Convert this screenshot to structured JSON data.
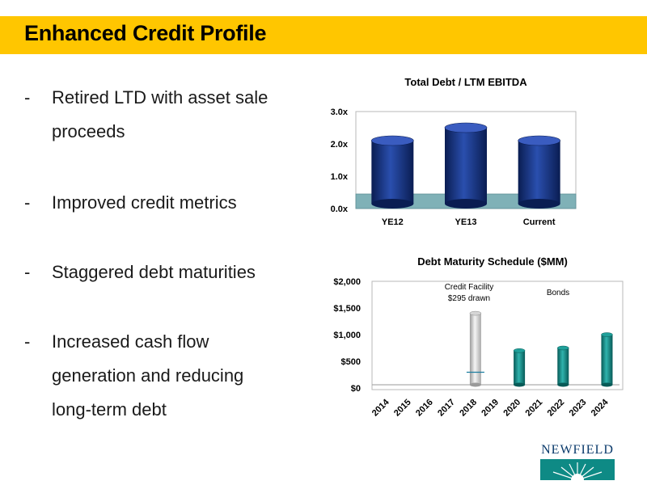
{
  "header": {
    "title": "Enhanced Credit Profile"
  },
  "bullets": [
    {
      "dash": "-",
      "lines": [
        "Retired LTD with asset sale",
        "proceeds"
      ]
    },
    {
      "dash": "-",
      "lines": [
        "Improved credit metrics"
      ]
    },
    {
      "dash": "-",
      "lines": [
        "Staggered debt maturities"
      ]
    },
    {
      "dash": "-",
      "lines": [
        "Increased cash flow",
        "generation and reducing",
        "long-term debt"
      ]
    }
  ],
  "logo": {
    "text": "NEWFIELD"
  },
  "colors": {
    "header": "#FFC600",
    "navy_bar": "#14307A",
    "teal_bar": "#0E8A85",
    "floor": "#7FB1B7"
  },
  "chart_data": [
    {
      "type": "bar",
      "title": "Total Debt / LTM EBITDA",
      "categories": [
        "YE12",
        "YE13",
        "Current"
      ],
      "values": [
        2.1,
        2.5,
        2.1
      ],
      "ylim": [
        0,
        3
      ],
      "yticks": [
        "0.0x",
        "1.0x",
        "2.0x",
        "3.0x"
      ],
      "xlabel": "",
      "ylabel": "",
      "grid": false
    },
    {
      "type": "bar",
      "title": "Debt Maturity Schedule ($MM)",
      "categories": [
        "2014",
        "2015",
        "2016",
        "2017",
        "2018",
        "2019",
        "2020",
        "2021",
        "2022",
        "2023",
        "2024"
      ],
      "series": [
        {
          "values": [
            0,
            0,
            0,
            0,
            1400,
            0,
            700,
            0,
            750,
            0,
            1000
          ]
        }
      ],
      "highlight": {
        "category": "2018",
        "drawn": 295
      },
      "ylim": [
        0,
        2000
      ],
      "yticks": [
        "$0",
        "$500",
        "$1,000",
        "$1,500",
        "$2,000"
      ],
      "annotations": [
        {
          "lines": [
            "Credit Facility",
            "$295 drawn"
          ]
        },
        {
          "lines": [
            "Bonds"
          ]
        }
      ],
      "xlabel": "",
      "ylabel": "",
      "grid": false
    }
  ]
}
